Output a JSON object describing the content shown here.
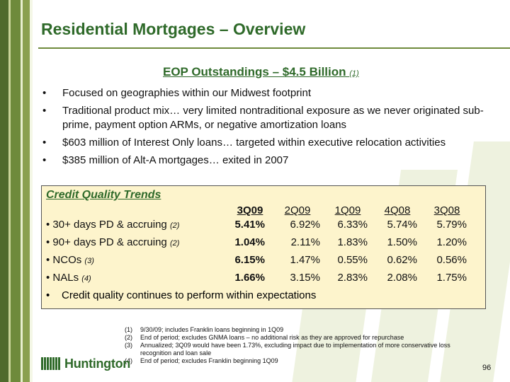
{
  "title": "Residential Mortgages – Overview",
  "subtitle": {
    "text": "EOP Outstandings – $4.5 Billion ",
    "footnote": "(1)"
  },
  "bullets": [
    "Focused on geographies within our Midwest footprint",
    "Traditional product mix… very limited nontraditional exposure as we never originated sub-prime, payment option ARMs, or negative amortization loans",
    "$603 million of Interest Only loans… targeted within executive relocation activities",
    "$385 million of Alt-A mortgages… exited in 2007"
  ],
  "credit_quality": {
    "title": "Credit Quality Trends",
    "columns": [
      "3Q09",
      "2Q09",
      "1Q09",
      "4Q08",
      "3Q08"
    ],
    "rows": [
      {
        "label": "30+ days PD & accruing ",
        "footnote": "(2)",
        "values": [
          "5.41%",
          "6.92%",
          "6.33%",
          "5.74%",
          "5.79%"
        ]
      },
      {
        "label": "90+ days PD & accruing ",
        "footnote": "(2)",
        "values": [
          "1.04%",
          "2.11%",
          "1.83%",
          "1.50%",
          "1.20%"
        ]
      },
      {
        "label": "NCOs ",
        "footnote": "(3)",
        "values": [
          "6.15%",
          "1.47%",
          "0.55%",
          "0.62%",
          "0.56%"
        ]
      },
      {
        "label": "NALs ",
        "footnote": "(4)",
        "values": [
          "1.66%",
          "3.15%",
          "2.83%",
          "2.08%",
          "1.75%"
        ]
      }
    ],
    "note": "Credit quality continues to perform within expectations"
  },
  "footnotes": [
    {
      "num": "(1)",
      "text": "9/30/09; includes Franklin loans beginning in 1Q09"
    },
    {
      "num": "(2)",
      "text": "End of period; excludes GNMA loans – no additional risk as they are approved for repurchase"
    },
    {
      "num": "(3)",
      "text": "Annualized; 3Q09 would have been 1.73%, excluding impact due to implementation of more conservative loss recognition and loan sale"
    },
    {
      "num": "(4)",
      "text": "End of period; excludes Franklin beginning 1Q09"
    }
  ],
  "logo_text": "Huntington",
  "page_number": "96",
  "colors": {
    "brand_green": "#2f6a2a",
    "box_fill": "#fdf4cc"
  }
}
